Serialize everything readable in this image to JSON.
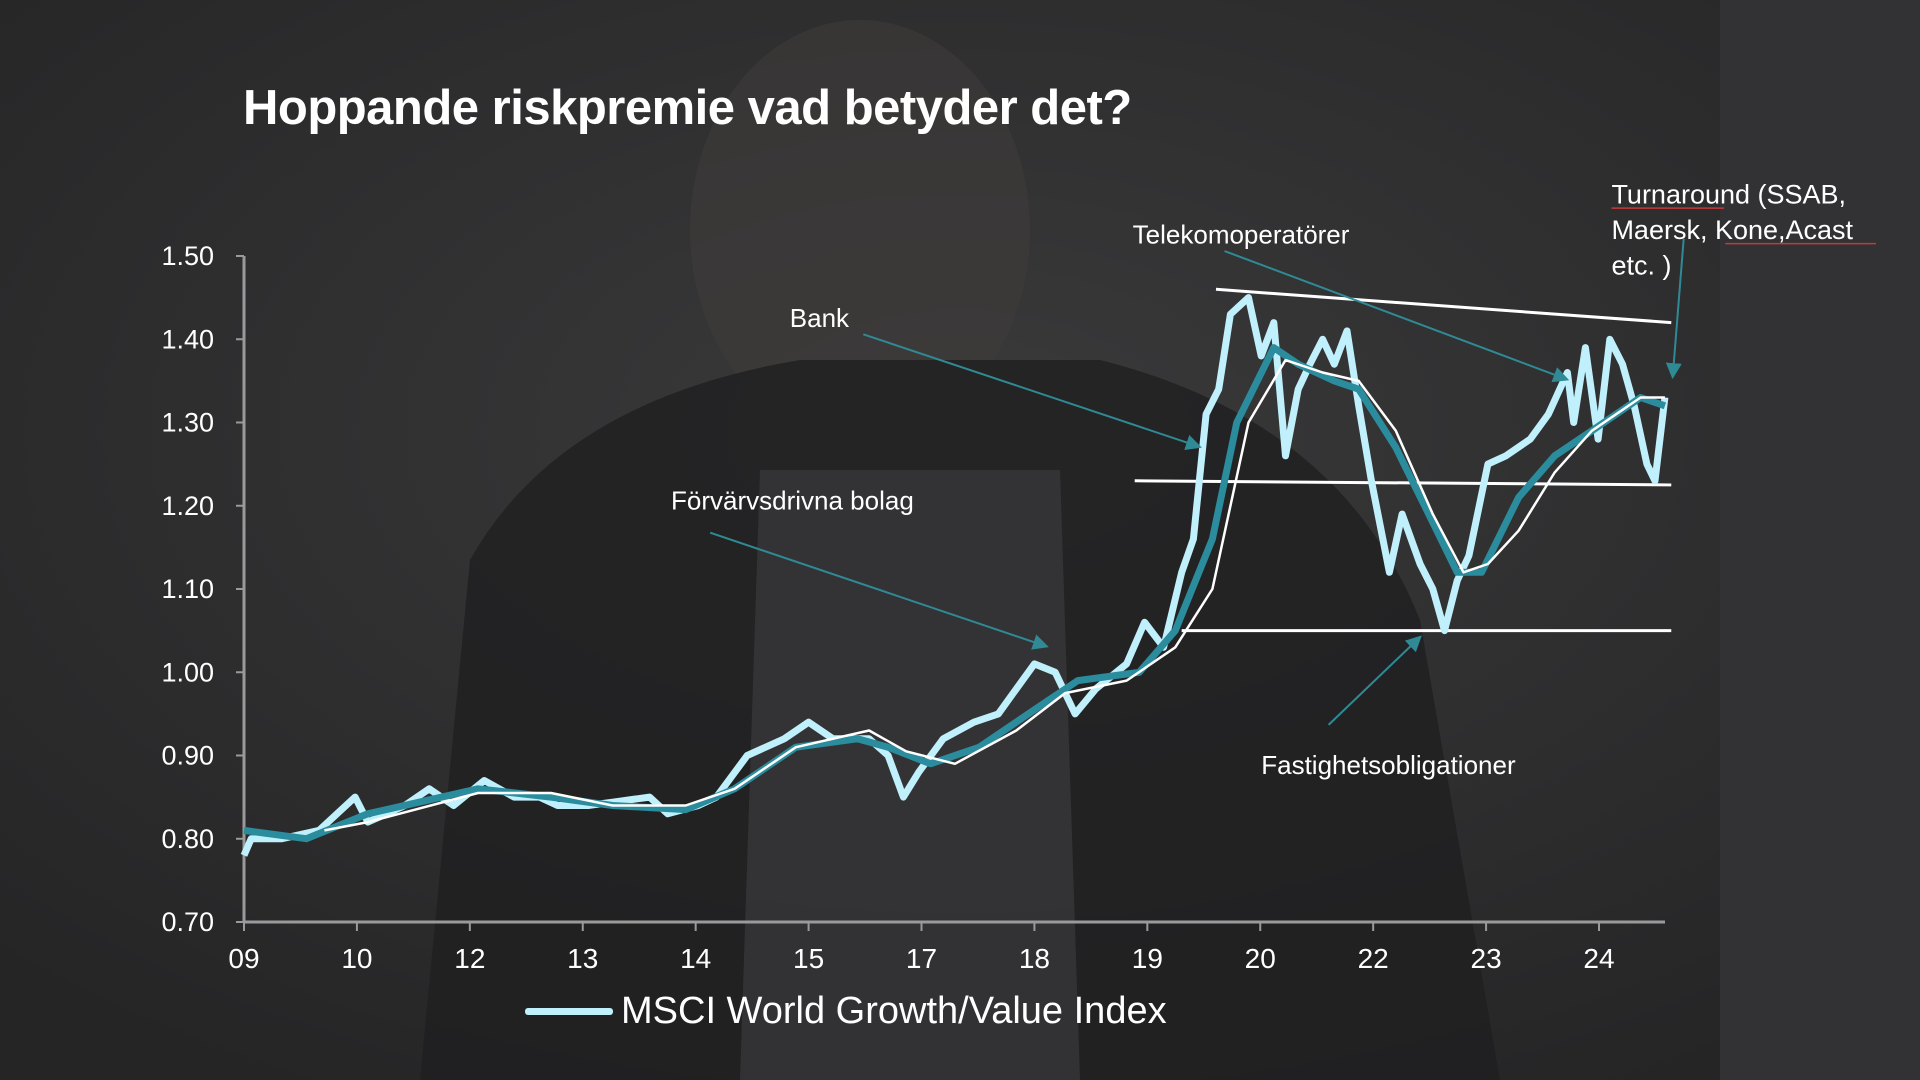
{
  "title": "Hoppande riskpremie vad betyder det?",
  "chart_data": {
    "type": "line",
    "title": "Hoppande riskpremie vad betyder det?",
    "ylim": [
      0.7,
      1.5
    ],
    "y_ticks": [
      "1.50",
      "1.40",
      "1.30",
      "1.20",
      "1.10",
      "1.00",
      "0.90",
      "0.80",
      "0.70"
    ],
    "x_tick_labels": [
      "09",
      "10",
      "12",
      "13",
      "14",
      "15",
      "17",
      "18",
      "19",
      "20",
      "22",
      "23",
      "24"
    ],
    "xlim": [
      2009,
      2024.9
    ],
    "grid": false,
    "legend": {
      "position": "bottom",
      "entries": [
        "MSCI World Growth/Value Index"
      ]
    },
    "series": [
      {
        "name": "MSCI World Growth/Value Index",
        "color": "#bff0fb",
        "x": [
          2009.0,
          2009.08,
          2009.42,
          2009.83,
          2010.23,
          2010.37,
          2010.78,
          2011.05,
          2011.32,
          2011.66,
          2011.99,
          2012.27,
          2012.47,
          2012.81,
          2013.15,
          2013.49,
          2013.69,
          2014.03,
          2014.23,
          2014.57,
          2014.98,
          2015.25,
          2015.52,
          2015.92,
          2016.13,
          2016.3,
          2016.47,
          2016.74,
          2017.08,
          2017.35,
          2017.55,
          2017.75,
          2017.98,
          2018.2,
          2018.43,
          2018.77,
          2018.97,
          2019.18,
          2019.38,
          2019.51,
          2019.65,
          2019.79,
          2019.92,
          2020.12,
          2020.26,
          2020.4,
          2020.53,
          2020.67,
          2020.8,
          2020.94,
          2021.07,
          2021.21,
          2021.34,
          2021.48,
          2021.68,
          2021.82,
          2022.02,
          2022.16,
          2022.29,
          2022.43,
          2022.56,
          2022.77,
          2022.97,
          2023.24,
          2023.44,
          2023.65,
          2023.72,
          2023.85,
          2023.99,
          2024.12,
          2024.26,
          2024.39,
          2024.53,
          2024.62,
          2024.73
        ],
        "y": [
          0.78,
          0.8,
          0.8,
          0.81,
          0.85,
          0.82,
          0.84,
          0.86,
          0.84,
          0.87,
          0.85,
          0.85,
          0.84,
          0.84,
          0.845,
          0.85,
          0.83,
          0.84,
          0.85,
          0.9,
          0.92,
          0.94,
          0.92,
          0.92,
          0.9,
          0.85,
          0.88,
          0.92,
          0.94,
          0.95,
          0.98,
          1.01,
          1.0,
          0.95,
          0.98,
          1.01,
          1.06,
          1.03,
          1.12,
          1.16,
          1.31,
          1.34,
          1.43,
          1.45,
          1.38,
          1.42,
          1.26,
          1.34,
          1.37,
          1.4,
          1.37,
          1.41,
          1.32,
          1.23,
          1.12,
          1.19,
          1.13,
          1.1,
          1.05,
          1.11,
          1.14,
          1.25,
          1.26,
          1.28,
          1.31,
          1.36,
          1.3,
          1.39,
          1.28,
          1.4,
          1.37,
          1.32,
          1.25,
          1.23,
          1.33
        ]
      },
      {
        "color": "#2a8c9c",
        "x": [
          2009.0,
          2009.69,
          2010.37,
          2011.59,
          2012.4,
          2013.08,
          2013.89,
          2014.43,
          2015.11,
          2015.79,
          2016.13,
          2016.6,
          2017.14,
          2017.82,
          2018.23,
          2018.91,
          2019.31,
          2019.72,
          2019.99,
          2020.4,
          2020.67,
          2021.07,
          2021.34,
          2021.75,
          2022.16,
          2022.43,
          2022.7,
          2023.11,
          2023.51,
          2023.92,
          2024.46,
          2024.73
        ],
        "y": [
          0.81,
          0.8,
          0.83,
          0.86,
          0.85,
          0.84,
          0.835,
          0.86,
          0.91,
          0.92,
          0.91,
          0.89,
          0.91,
          0.96,
          0.99,
          1.0,
          1.05,
          1.16,
          1.3,
          1.39,
          1.37,
          1.35,
          1.34,
          1.27,
          1.18,
          1.12,
          1.12,
          1.21,
          1.26,
          1.29,
          1.33,
          1.32
        ]
      },
      {
        "color": "#ffffff",
        "x": [
          2009.89,
          2010.37,
          2011.59,
          2012.4,
          2013.08,
          2013.89,
          2014.43,
          2015.11,
          2015.92,
          2016.33,
          2016.87,
          2017.55,
          2018.09,
          2018.77,
          2019.31,
          2019.72,
          2020.12,
          2020.53,
          2020.94,
          2021.34,
          2021.75,
          2022.16,
          2022.5,
          2022.77,
          2023.11,
          2023.51,
          2023.92,
          2024.46,
          2024.73
        ],
        "y": [
          0.81,
          0.82,
          0.855,
          0.855,
          0.84,
          0.84,
          0.86,
          0.91,
          0.93,
          0.905,
          0.89,
          0.93,
          0.975,
          0.99,
          1.03,
          1.1,
          1.3,
          1.375,
          1.36,
          1.35,
          1.29,
          1.19,
          1.12,
          1.13,
          1.17,
          1.24,
          1.29,
          1.33,
          1.33
        ]
      }
    ],
    "reference_lines": [
      {
        "x": [
          2019.76,
          2024.8
        ],
        "y": [
          1.46,
          1.42
        ]
      },
      {
        "x": [
          2018.86,
          2024.8
        ],
        "y": [
          1.23,
          1.225
        ]
      },
      {
        "x": [
          2019.38,
          2024.8
        ],
        "y": [
          1.05,
          1.05
        ]
      }
    ],
    "annotations": [
      {
        "label": "Bank"
      },
      {
        "label": "Förvärvsdrivna bolag"
      },
      {
        "label": "Telekomoperatörer"
      },
      {
        "label": "Fastighetsobligationer"
      },
      {
        "lines": [
          "Turnaround (SSAB,",
          "Maersk, Kone,Acast",
          "etc. )"
        ]
      }
    ]
  }
}
